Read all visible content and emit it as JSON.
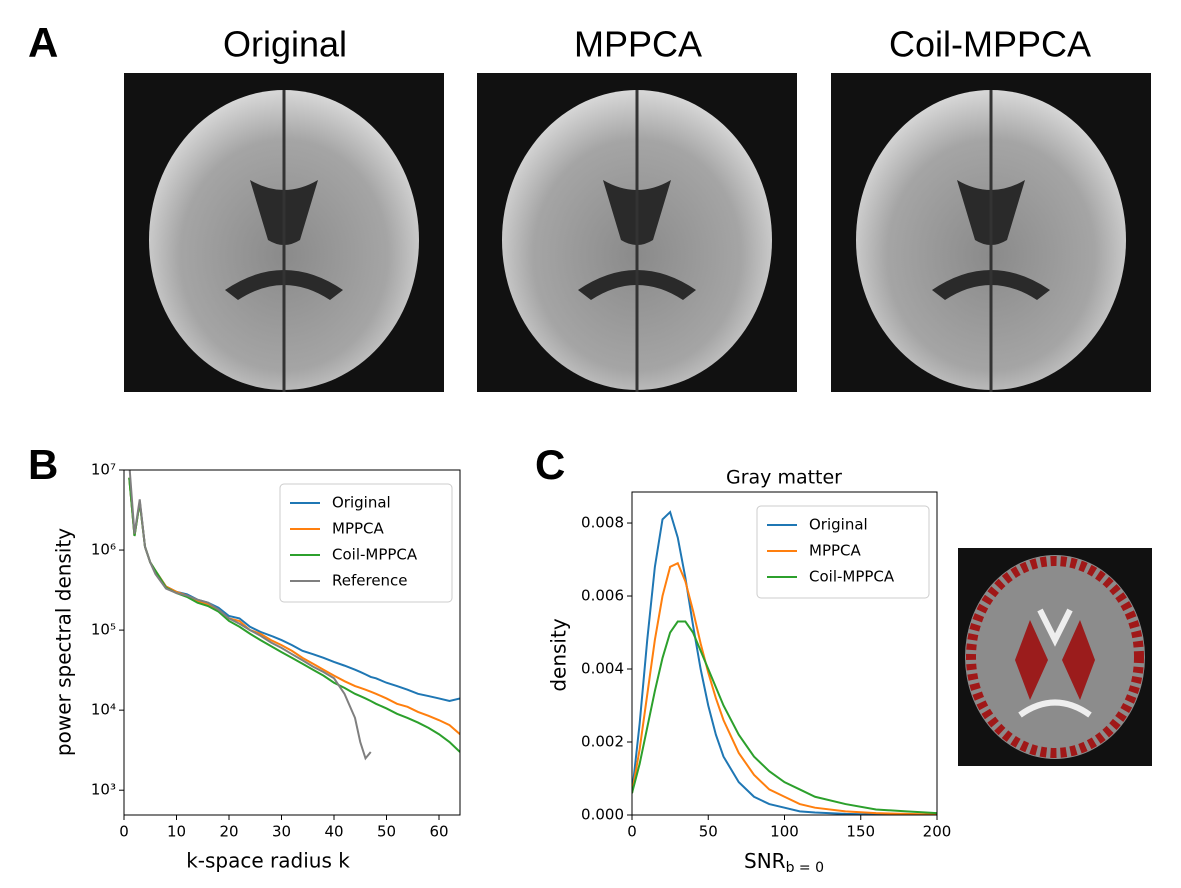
{
  "panel_labels": [
    "A",
    "B",
    "C"
  ],
  "images": [
    {
      "title": "Original"
    },
    {
      "title": "MPPCA"
    },
    {
      "title": "Coil-MPPCA"
    }
  ],
  "chart_data": [
    {
      "type": "line",
      "xlabel": "k-space radius k",
      "ylabel": "power spectral density",
      "log_y": true,
      "legend": "upper right",
      "xlim": [
        0,
        64
      ],
      "xticks": [
        0,
        10,
        20,
        30,
        40,
        50,
        60
      ],
      "ylim": [
        490,
        10000000
      ],
      "yticks": [
        {
          "value": 1000,
          "label": "10³"
        },
        {
          "value": 10000,
          "label": "10⁴"
        },
        {
          "value": 100000,
          "label": "10⁵"
        },
        {
          "value": 1000000,
          "label": "10⁶"
        },
        {
          "value": 10000000,
          "label": "10⁷"
        }
      ],
      "x": [
        1,
        2,
        3,
        4,
        5,
        6,
        8,
        10,
        12,
        14,
        16,
        18,
        20,
        22,
        24,
        26,
        28,
        30,
        32,
        34,
        36,
        38,
        40,
        42,
        44,
        45,
        46,
        47,
        48,
        50,
        52,
        54,
        56,
        58,
        60,
        62,
        64
      ],
      "series": [
        {
          "name": "Original",
          "color": "#1f77b4",
          "values": [
            8000000,
            1500000,
            4000000,
            1100000,
            700000,
            550000,
            350000,
            300000,
            280000,
            240000,
            220000,
            190000,
            150000,
            140000,
            110000,
            95000,
            85000,
            75000,
            65000,
            55000,
            50000,
            45000,
            40000,
            36000,
            32000,
            30000,
            28000,
            26000,
            25000,
            22000,
            20000,
            18000,
            16000,
            15000,
            14000,
            13000,
            14000
          ]
        },
        {
          "name": "MPPCA",
          "color": "#ff7f0e",
          "values": [
            8000000,
            1500000,
            4000000,
            1100000,
            700000,
            550000,
            350000,
            300000,
            270000,
            230000,
            210000,
            180000,
            140000,
            130000,
            100000,
            90000,
            75000,
            65000,
            55000,
            45000,
            38000,
            32000,
            27000,
            23000,
            20000,
            19000,
            18000,
            17000,
            16000,
            14000,
            12000,
            11000,
            9500,
            8500,
            7500,
            6500,
            5000
          ]
        },
        {
          "name": "Coil-MPPCA",
          "color": "#2ca02c",
          "values": [
            8000000,
            1500000,
            4000000,
            1100000,
            700000,
            550000,
            340000,
            290000,
            260000,
            220000,
            200000,
            170000,
            130000,
            110000,
            90000,
            75000,
            63000,
            53000,
            45000,
            38000,
            32000,
            27000,
            22000,
            19000,
            16000,
            15000,
            14000,
            13000,
            12000,
            10500,
            9000,
            8000,
            7000,
            6000,
            5000,
            4000,
            3000
          ]
        },
        {
          "name": "Reference",
          "color": "#7f7f7f",
          "values": [
            12000000,
            1600000,
            4300000,
            1100000,
            700000,
            500000,
            330000,
            290000,
            270000,
            240000,
            220000,
            180000,
            140000,
            120000,
            100000,
            85000,
            70000,
            60000,
            50000,
            42000,
            35000,
            30000,
            25000,
            16000,
            8000,
            4000,
            2500,
            3000,
            null,
            null,
            null,
            null,
            null,
            null,
            null,
            null,
            null
          ]
        }
      ]
    },
    {
      "type": "line",
      "title": "Gray matter",
      "xlabel": "SNR",
      "xlabel_subscript": "b = 0",
      "ylabel": "density",
      "log_y": false,
      "legend": "upper right",
      "xlim": [
        0,
        200
      ],
      "xticks": [
        0,
        50,
        100,
        150,
        200
      ],
      "ylim": [
        0,
        0.00885
      ],
      "yticks": [
        {
          "value": 0,
          "label": "0.000"
        },
        {
          "value": 0.002,
          "label": "0.002"
        },
        {
          "value": 0.004,
          "label": "0.004"
        },
        {
          "value": 0.006,
          "label": "0.006"
        },
        {
          "value": 0.008,
          "label": "0.008"
        }
      ],
      "x": [
        0,
        5,
        10,
        15,
        20,
        25,
        30,
        35,
        40,
        45,
        50,
        55,
        60,
        70,
        80,
        90,
        100,
        110,
        120,
        140,
        160,
        180,
        200
      ],
      "series": [
        {
          "name": "Original",
          "color": "#1f77b4",
          "values": [
            0.0006,
            0.0025,
            0.0048,
            0.0068,
            0.0081,
            0.0083,
            0.0076,
            0.0065,
            0.0052,
            0.004,
            0.003,
            0.0022,
            0.0016,
            0.0009,
            0.0005,
            0.0003,
            0.0002,
            0.0001,
            7e-05,
            3e-05,
            1e-05,
            1e-05,
            0
          ]
        },
        {
          "name": "MPPCA",
          "color": "#ff7f0e",
          "values": [
            0.0006,
            0.0018,
            0.0033,
            0.0048,
            0.006,
            0.0068,
            0.0069,
            0.0064,
            0.0056,
            0.0047,
            0.0039,
            0.0032,
            0.0026,
            0.0017,
            0.0011,
            0.0007,
            0.0005,
            0.0003,
            0.0002,
            0.0001,
            5e-05,
            3e-05,
            1e-05
          ]
        },
        {
          "name": "Coil-MPPCA",
          "color": "#2ca02c",
          "values": [
            0.0006,
            0.0014,
            0.0024,
            0.0034,
            0.0043,
            0.005,
            0.0053,
            0.0053,
            0.005,
            0.0045,
            0.004,
            0.0035,
            0.003,
            0.0022,
            0.0016,
            0.0012,
            0.0009,
            0.0007,
            0.0005,
            0.0003,
            0.00015,
            0.0001,
            5e-05
          ]
        }
      ]
    }
  ]
}
